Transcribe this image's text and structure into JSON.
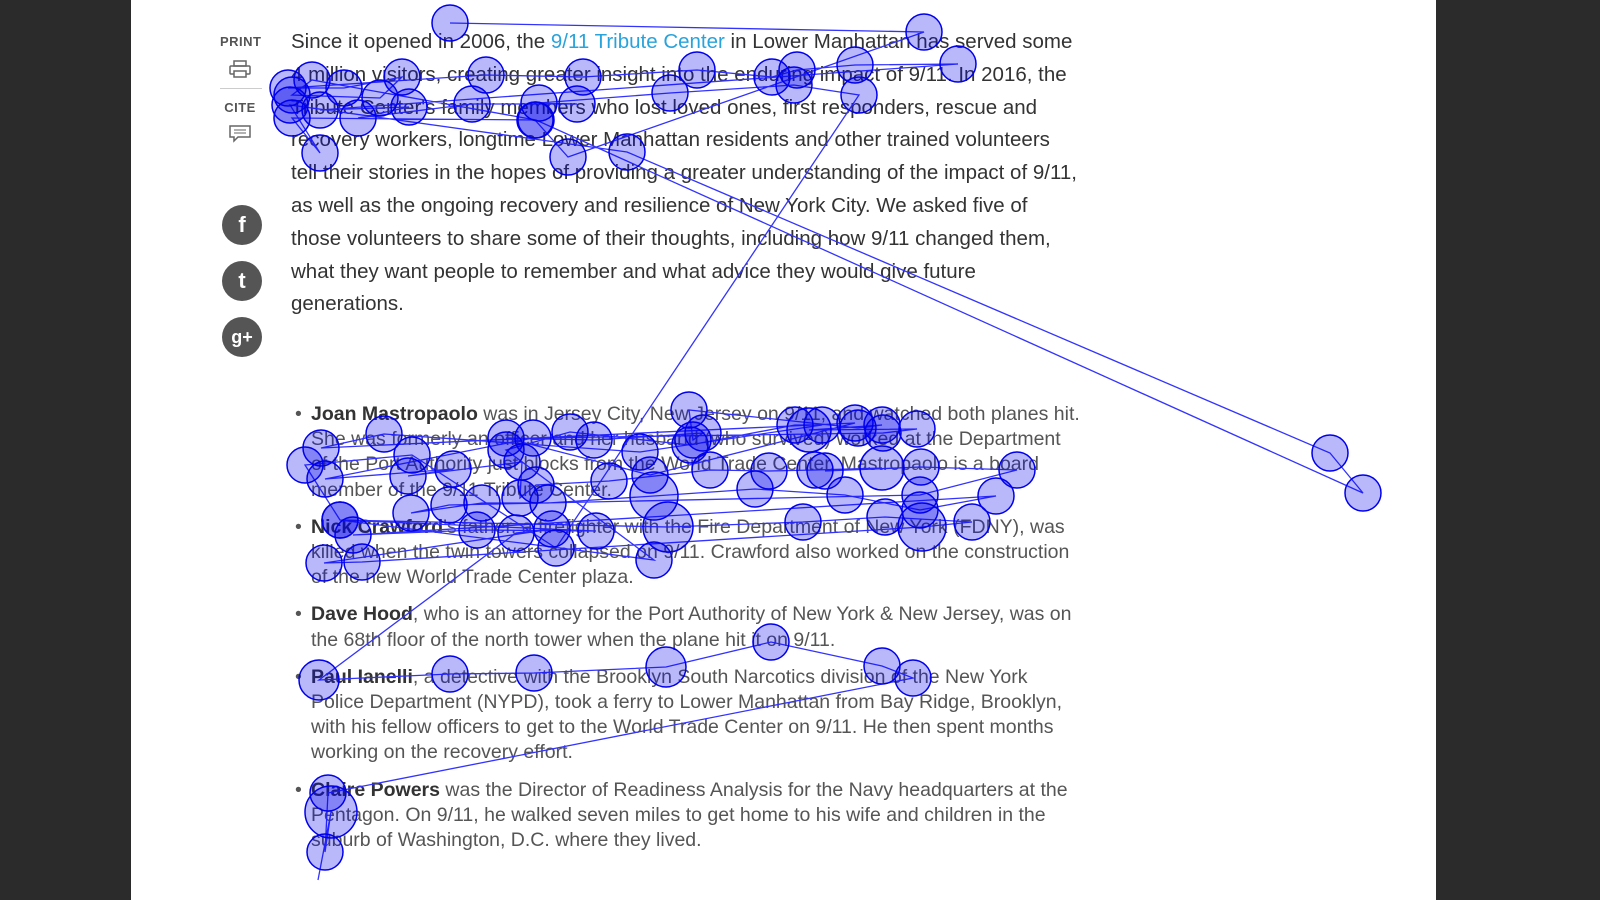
{
  "sidebar": {
    "print_label": "PRINT",
    "cite_label": "CITE",
    "icons": [
      "printer-icon",
      "comment-icon"
    ],
    "social": [
      {
        "name": "facebook",
        "glyph": "f"
      },
      {
        "name": "twitter",
        "glyph": "t"
      },
      {
        "name": "google-plus",
        "glyph": "g+"
      }
    ]
  },
  "article": {
    "intro_before_link": "Since it opened in 2006, the ",
    "intro_link": "9/11 Tribute Center",
    "intro_after_link": " in Lower Manhattan has served some 4 million visitors, creating greater insight into the enduring impact of 9/11. In 2016, the Tribute Center's family members who lost loved ones, first responders, rescue and recovery workers, longtime Lower Manhattan residents and other trained volunteers tell their stories in the hopes of providing a greater understanding of the impact of 9/11, as well as the ongoing recovery and resilience of New York City. We asked five of those volunteers to share some of their thoughts, including how 9/11 changed them, what they want people to remember and what advice they would give future generations.",
    "people": [
      {
        "name": "Joan Mastropaolo",
        "text": " was in Jersey City, New Jersey on 9/11, and watched both planes hit. She was formerly an officer and her husband (who survived) worked at the Department of the Port Authority just blocks from the World Trade Center. Mastropaolo is a board member of the 9/11 Tribute Center."
      },
      {
        "name": "Nick Crawford",
        "text": "'s father, a firefighter with the Fire Department of New York (FDNY), was killed when the twin towers collapsed on 9/11. Crawford also worked on the construction of the new World Trade Center plaza."
      },
      {
        "name": "Dave Hood",
        "text": ", who is an attorney for the Port Authority of New York & New Jersey, was on the 68th floor of the north tower when the plane hit it on 9/11."
      },
      {
        "name": "Paul Ianelli",
        "text": ", a detective with the Brooklyn South Narcotics division of the New York Police Department (NYPD), took a ferry to Lower Manhattan from Bay Ridge, Brooklyn, with his fellow officers to get to the World Trade Center on 9/11. He then spent months working on the recovery effort."
      },
      {
        "name": "Claire Powers",
        "text": " was the Director of Readiness Analysis for the Navy headquarters at the Pentagon. On 9/11, he walked seven miles to get home to his wife and children in the suburb of Washington, D.C. where they lived."
      }
    ]
  },
  "gaze_overlay": {
    "fixation_color": "#0000ee",
    "saccade_color": "#3333ff",
    "fixation_count": 106
  }
}
